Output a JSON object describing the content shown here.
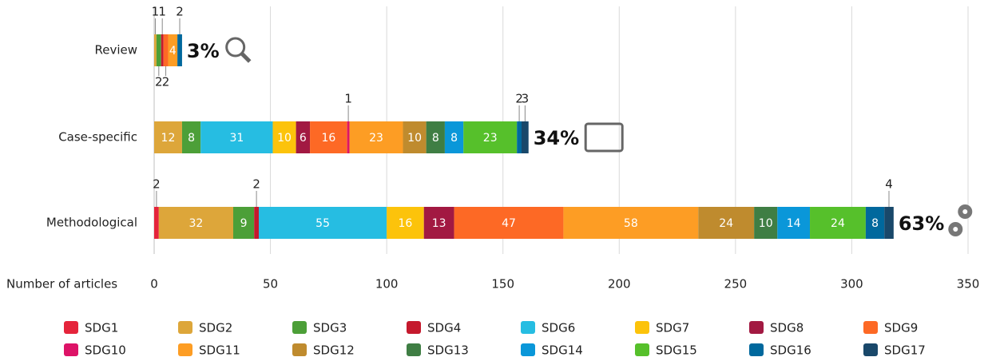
{
  "chart_data": {
    "type": "stacked-bar-horizontal",
    "categories": [
      "Review",
      "Case-specific",
      "Methodological"
    ],
    "series": [
      {
        "name": "SDG1",
        "color": "#e5243b",
        "values": [
          null,
          null,
          2
        ]
      },
      {
        "name": "SDG2",
        "color": "#dda63a",
        "values": [
          1,
          12,
          32
        ]
      },
      {
        "name": "SDG3",
        "color": "#4c9f38",
        "values": [
          2,
          8,
          9
        ]
      },
      {
        "name": "SDG4",
        "color": "#c5192d",
        "values": [
          1,
          null,
          2
        ]
      },
      {
        "name": "SDG6",
        "color": "#26bde2",
        "values": [
          null,
          31,
          55
        ]
      },
      {
        "name": "SDG7",
        "color": "#fcc30b",
        "values": [
          null,
          10,
          16
        ]
      },
      {
        "name": "SDG8",
        "color": "#a21942",
        "values": [
          null,
          6,
          13
        ]
      },
      {
        "name": "SDG9",
        "color": "#fd6925",
        "values": [
          2,
          16,
          47
        ]
      },
      {
        "name": "SDG10",
        "color": "#dd1367",
        "values": [
          null,
          1,
          null
        ]
      },
      {
        "name": "SDG11",
        "color": "#fd9d24",
        "values": [
          4,
          23,
          58
        ]
      },
      {
        "name": "SDG12",
        "color": "#bf8b2e",
        "values": [
          null,
          10,
          24
        ]
      },
      {
        "name": "SDG13",
        "color": "#3f7e44",
        "values": [
          null,
          8,
          10
        ]
      },
      {
        "name": "SDG14",
        "color": "#0a97d9",
        "values": [
          null,
          8,
          14
        ]
      },
      {
        "name": "SDG15",
        "color": "#56c02b",
        "values": [
          null,
          23,
          24
        ]
      },
      {
        "name": "SDG16",
        "color": "#00689d",
        "values": [
          2,
          2,
          8
        ]
      },
      {
        "name": "SDG17",
        "color": "#19486a",
        "values": [
          null,
          3,
          4
        ]
      }
    ],
    "annotations": [
      "3%",
      "34%",
      "63%"
    ],
    "x_label": "Number of articles",
    "xlim": [
      0,
      350
    ],
    "xticks": [
      0,
      50,
      100,
      150,
      200,
      250,
      300,
      350
    ],
    "grid": true
  }
}
